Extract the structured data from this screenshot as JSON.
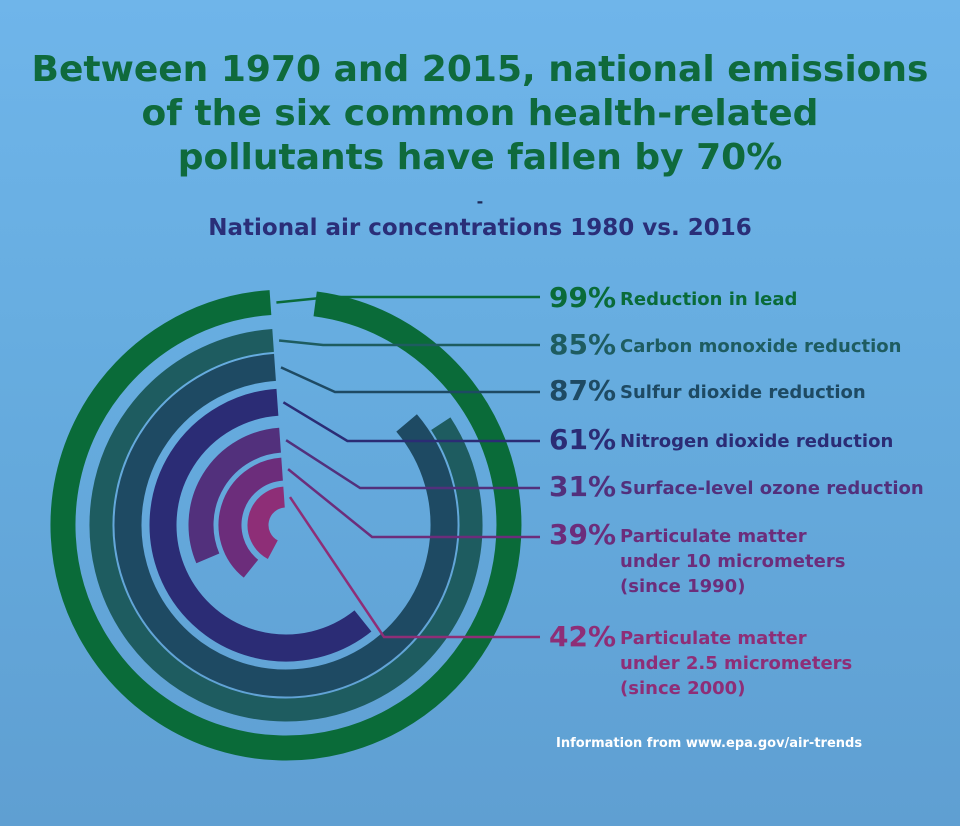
{
  "header": {
    "title_lines": [
      "Between 1970 and 2015, national emissions",
      "of the six common health-related",
      "pollutants have fallen by 70%"
    ],
    "dash": "-",
    "subtitle": "National air concentrations 1980 vs. 2016"
  },
  "source": "Information from www.epa.gov/air-trends",
  "chart_data": {
    "type": "radial-bar",
    "title": "Between 1970 and 2015, national emissions of the six common health-related pollutants have fallen by 70%",
    "subtitle": "National air concentrations 1980 vs. 2016",
    "unit": "%",
    "series": [
      {
        "pollutant": "lead",
        "pct": "99%",
        "value": 99,
        "desc_lines": [
          "Reduction in lead"
        ],
        "color": "#0a6b39"
      },
      {
        "pollutant": "carbon monoxide",
        "pct": "85%",
        "value": 85,
        "desc_lines": [
          "Carbon monoxide reduction"
        ],
        "color": "#1e5c60"
      },
      {
        "pollutant": "sulfur dioxide",
        "pct": "87%",
        "value": 87,
        "desc_lines": [
          "Sulfur dioxide reduction"
        ],
        "color": "#1e4a63"
      },
      {
        "pollutant": "nitrogen dioxide",
        "pct": "61%",
        "value": 61,
        "desc_lines": [
          "Nitrogen dioxide reduction"
        ],
        "color": "#2b2c75"
      },
      {
        "pollutant": "surface-level ozone",
        "pct": "31%",
        "value": 31,
        "desc_lines": [
          "Surface-level ozone reduction"
        ],
        "color": "#52307c"
      },
      {
        "pollutant": "particulate matter under 10 micrometers",
        "pct": "39%",
        "value": 39,
        "desc_lines": [
          "Particulate matter",
          "under 10 micrometers",
          "(since 1990)"
        ],
        "color": "#6c2d7b"
      },
      {
        "pollutant": "particulate matter under 2.5 micrometers",
        "pct": "42%",
        "value": 42,
        "desc_lines": [
          "Particulate matter",
          "under 2.5 micrometers",
          "(since 2000)"
        ],
        "color": "#8e2e77"
      }
    ]
  }
}
